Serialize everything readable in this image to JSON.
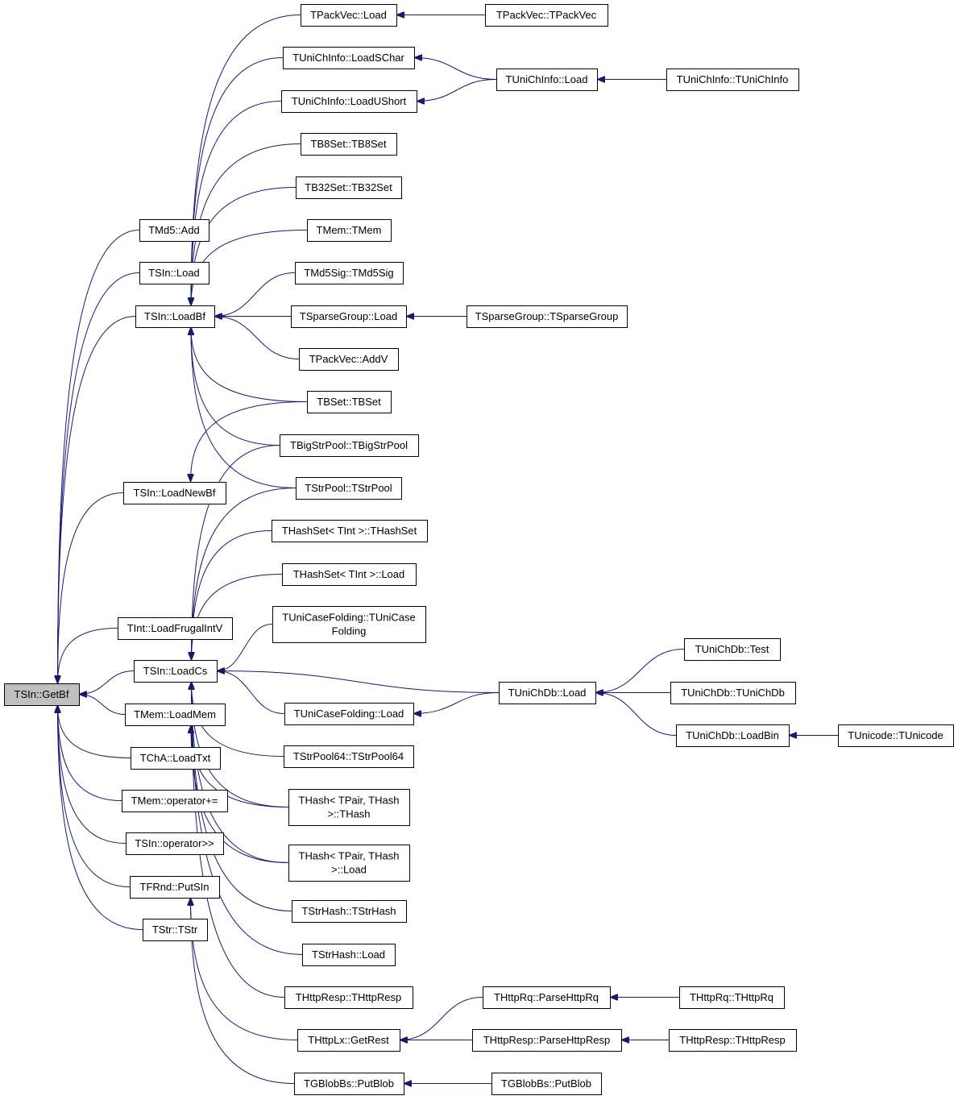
{
  "graph": {
    "type": "caller-graph",
    "edge_color": "#191970",
    "current_node_fill": "#bfbfbf",
    "nodes": [
      {
        "id": "getbf",
        "lines": [
          "TSIn::GetBf"
        ],
        "current": true
      },
      {
        "id": "md5add",
        "lines": [
          "TMd5::Add"
        ]
      },
      {
        "id": "sinload",
        "lines": [
          "TSIn::Load"
        ]
      },
      {
        "id": "loadbf",
        "lines": [
          "TSIn::LoadBf"
        ]
      },
      {
        "id": "loadnewbf",
        "lines": [
          "TSIn::LoadNewBf"
        ]
      },
      {
        "id": "frugal",
        "lines": [
          "TInt::LoadFrugalIntV"
        ]
      },
      {
        "id": "loadcs",
        "lines": [
          "TSIn::LoadCs"
        ]
      },
      {
        "id": "loadmem",
        "lines": [
          "TMem::LoadMem"
        ]
      },
      {
        "id": "loadtxt",
        "lines": [
          "TChA::LoadTxt"
        ]
      },
      {
        "id": "memplus",
        "lines": [
          "TMem::operator+="
        ]
      },
      {
        "id": "sinshift",
        "lines": [
          "TSIn::operator>>"
        ]
      },
      {
        "id": "putsin",
        "lines": [
          "TFRnd::PutSIn"
        ]
      },
      {
        "id": "tstr",
        "lines": [
          "TStr::TStr"
        ]
      },
      {
        "id": "packload",
        "lines": [
          "TPackVec::Load"
        ]
      },
      {
        "id": "loadschar",
        "lines": [
          "TUniChInfo::LoadSChar"
        ]
      },
      {
        "id": "loadushort",
        "lines": [
          "TUniChInfo::LoadUShort"
        ]
      },
      {
        "id": "b8set",
        "lines": [
          "TB8Set::TB8Set"
        ]
      },
      {
        "id": "b32set",
        "lines": [
          "TB32Set::TB32Set"
        ]
      },
      {
        "id": "tmem",
        "lines": [
          "TMem::TMem"
        ]
      },
      {
        "id": "md5sig",
        "lines": [
          "TMd5Sig::TMd5Sig"
        ]
      },
      {
        "id": "sgload",
        "lines": [
          "TSparseGroup::Load"
        ]
      },
      {
        "id": "addv",
        "lines": [
          "TPackVec::AddV"
        ]
      },
      {
        "id": "bset",
        "lines": [
          "TBSet::TBSet"
        ]
      },
      {
        "id": "bigstrpool",
        "lines": [
          "TBigStrPool::TBigStrPool"
        ]
      },
      {
        "id": "strpool",
        "lines": [
          "TStrPool::TStrPool"
        ]
      },
      {
        "id": "hashset",
        "lines": [
          "THashSet< TInt >::THashSet"
        ]
      },
      {
        "id": "hashsetload",
        "lines": [
          "THashSet< TInt >::Load"
        ]
      },
      {
        "id": "casefold",
        "lines": [
          "TUniCaseFolding::TUniCase",
          "Folding"
        ]
      },
      {
        "id": "casefoldload",
        "lines": [
          "TUniCaseFolding::Load"
        ]
      },
      {
        "id": "strpool64",
        "lines": [
          "TStrPool64::TStrPool64"
        ]
      },
      {
        "id": "thash",
        "lines": [
          "THash< TPair, THash",
          ">::THash"
        ]
      },
      {
        "id": "thashload",
        "lines": [
          "THash< TPair, THash",
          ">::Load"
        ]
      },
      {
        "id": "strhash",
        "lines": [
          "TStrHash::TStrHash"
        ]
      },
      {
        "id": "strhashload",
        "lines": [
          "TStrHash::Load"
        ]
      },
      {
        "id": "httpresp",
        "lines": [
          "THttpResp::THttpResp"
        ]
      },
      {
        "id": "getrest",
        "lines": [
          "THttpLx::GetRest"
        ]
      },
      {
        "id": "putblob",
        "lines": [
          "TGBlobBs::PutBlob"
        ]
      },
      {
        "id": "packvec",
        "lines": [
          "TPackVec::TPackVec"
        ]
      },
      {
        "id": "unichinfoload",
        "lines": [
          "TUniChInfo::Load"
        ]
      },
      {
        "id": "sparsegroup",
        "lines": [
          "TSparseGroup::TSparseGroup"
        ]
      },
      {
        "id": "unichdbload",
        "lines": [
          "TUniChDb::Load"
        ]
      },
      {
        "id": "parsehttprq",
        "lines": [
          "THttpRq::ParseHttpRq"
        ]
      },
      {
        "id": "parsehttpresp",
        "lines": [
          "THttpResp::ParseHttpResp"
        ]
      },
      {
        "id": "putblob2",
        "lines": [
          "TGBlobBs::PutBlob"
        ]
      },
      {
        "id": "unichinfo",
        "lines": [
          "TUniChInfo::TUniChInfo"
        ]
      },
      {
        "id": "unichdbtest",
        "lines": [
          "TUniChDb::Test"
        ]
      },
      {
        "id": "unichdb",
        "lines": [
          "TUniChDb::TUniChDb"
        ]
      },
      {
        "id": "loadbin",
        "lines": [
          "TUniChDb::LoadBin"
        ]
      },
      {
        "id": "httprq",
        "lines": [
          "THttpRq::THttpRq"
        ]
      },
      {
        "id": "httpresp2",
        "lines": [
          "THttpResp::THttpResp"
        ]
      },
      {
        "id": "unicode",
        "lines": [
          "TUnicode::TUnicode"
        ]
      }
    ],
    "edges": [
      [
        "md5add",
        "getbf"
      ],
      [
        "sinload",
        "getbf"
      ],
      [
        "loadbf",
        "getbf"
      ],
      [
        "loadnewbf",
        "getbf"
      ],
      [
        "frugal",
        "getbf"
      ],
      [
        "loadcs",
        "getbf"
      ],
      [
        "loadmem",
        "getbf"
      ],
      [
        "loadtxt",
        "getbf"
      ],
      [
        "memplus",
        "getbf"
      ],
      [
        "sinshift",
        "getbf"
      ],
      [
        "putsin",
        "getbf"
      ],
      [
        "tstr",
        "getbf"
      ],
      [
        "packload",
        "loadbf"
      ],
      [
        "loadschar",
        "loadbf"
      ],
      [
        "loadushort",
        "loadbf"
      ],
      [
        "b8set",
        "loadbf"
      ],
      [
        "b32set",
        "loadbf"
      ],
      [
        "tmem",
        "loadbf"
      ],
      [
        "md5sig",
        "loadbf"
      ],
      [
        "sgload",
        "loadbf"
      ],
      [
        "addv",
        "loadbf"
      ],
      [
        "bset",
        "loadbf"
      ],
      [
        "bigstrpool",
        "loadbf"
      ],
      [
        "strpool",
        "loadbf"
      ],
      [
        "bset",
        "loadnewbf"
      ],
      [
        "bigstrpool",
        "loadcs"
      ],
      [
        "strpool",
        "loadcs"
      ],
      [
        "hashset",
        "loadcs"
      ],
      [
        "hashsetload",
        "loadcs"
      ],
      [
        "casefold",
        "loadcs"
      ],
      [
        "unichdbload",
        "loadcs"
      ],
      [
        "casefoldload",
        "loadcs"
      ],
      [
        "strpool64",
        "loadcs"
      ],
      [
        "thash",
        "loadcs"
      ],
      [
        "thashload",
        "loadcs"
      ],
      [
        "strhash",
        "loadcs"
      ],
      [
        "strhashload",
        "loadcs"
      ],
      [
        "httpresp",
        "loadcs"
      ],
      [
        "thash",
        "loadmem"
      ],
      [
        "thashload",
        "loadmem"
      ],
      [
        "getrest",
        "putsin"
      ],
      [
        "putblob",
        "putsin"
      ],
      [
        "packvec",
        "packload"
      ],
      [
        "unichinfoload",
        "loadschar"
      ],
      [
        "unichinfoload",
        "loadushort"
      ],
      [
        "unichinfo",
        "unichinfoload"
      ],
      [
        "sparsegroup",
        "sgload"
      ],
      [
        "unichdbload",
        "casefoldload"
      ],
      [
        "unichdbtest",
        "unichdbload"
      ],
      [
        "unichdb",
        "unichdbload"
      ],
      [
        "loadbin",
        "unichdbload"
      ],
      [
        "unicode",
        "loadbin"
      ],
      [
        "parsehttprq",
        "getrest"
      ],
      [
        "parsehttpresp",
        "getrest"
      ],
      [
        "httprq",
        "parsehttprq"
      ],
      [
        "httpresp2",
        "parsehttpresp"
      ],
      [
        "putblob2",
        "putblob"
      ]
    ]
  }
}
